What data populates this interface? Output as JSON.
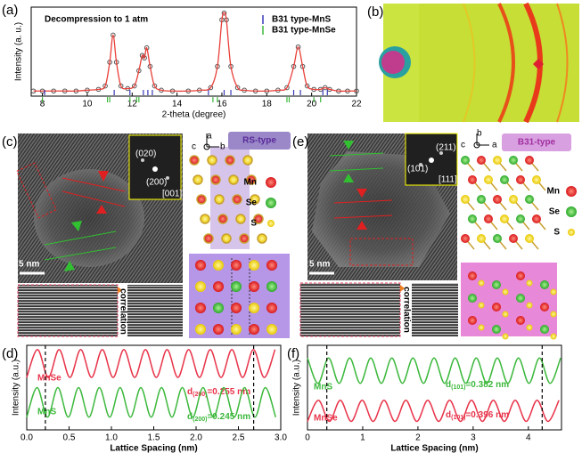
{
  "chart_data": [
    {
      "type": "xrd",
      "panel_label": "(a)",
      "title": "Decompression to 1 atm",
      "xlabel": "2-theta (degree)",
      "ylabel": "Intensity (a. u.)",
      "xlim": [
        7.5,
        22
      ],
      "xticks": [
        8,
        10,
        12,
        14,
        16,
        18,
        20,
        22
      ],
      "ylim": [
        0,
        1.05
      ],
      "legend": "upper right",
      "x": [
        7.6,
        8,
        8.5,
        9,
        9.5,
        10,
        10.5,
        10.8,
        11.0,
        11.15,
        11.3,
        11.5,
        11.8,
        12.1,
        12.3,
        12.45,
        12.55,
        12.65,
        12.8,
        13.0,
        13.3,
        13.8,
        14.5,
        15.0,
        15.5,
        15.8,
        16.0,
        16.1,
        16.2,
        16.4,
        16.7,
        17.0,
        17.5,
        18.0,
        18.5,
        18.9,
        19.2,
        19.4,
        19.6,
        19.8,
        20.1,
        20.4,
        20.6,
        20.8,
        21.2,
        21.6,
        22
      ],
      "series": [
        {
          "color": "#e8403a",
          "marker_color": "#555555",
          "values": [
            0.06,
            0.06,
            0.06,
            0.06,
            0.06,
            0.07,
            0.08,
            0.12,
            0.4,
            0.72,
            0.4,
            0.12,
            0.09,
            0.12,
            0.3,
            0.48,
            0.45,
            0.57,
            0.35,
            0.12,
            0.07,
            0.06,
            0.06,
            0.07,
            0.1,
            0.35,
            0.9,
            0.98,
            0.9,
            0.35,
            0.1,
            0.07,
            0.06,
            0.06,
            0.07,
            0.1,
            0.35,
            0.58,
            0.35,
            0.12,
            0.08,
            0.08,
            0.1,
            0.08,
            0.06,
            0.06,
            0.06
          ]
        }
      ],
      "tick_sets": [
        {
          "name": "B31 type-MnS",
          "color": "#3a3ab8",
          "positions": [
            8.1,
            11.2,
            11.9,
            12.5,
            12.7,
            12.9,
            15.4,
            16.1,
            16.4,
            19.2,
            19.5,
            20.5,
            20.7
          ]
        },
        {
          "name": "B31 type-MnSe",
          "color": "#3cb83c",
          "positions": [
            8.0,
            10.9,
            11.0,
            11.9,
            12.2,
            12.3,
            15.6,
            15.8,
            18.9,
            19.0,
            20.1,
            20.4
          ]
        }
      ]
    },
    {
      "type": "wave",
      "panel_label": "(d)",
      "xlabel": "Lattice Spacing (nm)",
      "ylabel": "Intensity (a.u.)",
      "xlim": [
        0,
        3.0
      ],
      "xticks": [
        {
          "value": 0,
          "label": "0.0"
        },
        0.5,
        {
          "value": 1,
          "label": "1.0"
        },
        1.5,
        {
          "value": 2,
          "label": "2.0"
        },
        2.5,
        {
          "value": 3,
          "label": "3.0"
        }
      ],
      "ylim": [
        0,
        1
      ],
      "vlines": [
        0.22,
        2.68
      ],
      "series": [
        {
          "name": "MnSe",
          "color": "#e8344a",
          "label": {
            "d": "d",
            "sub": "(200)",
            "tail": "=0.255 nm"
          },
          "x": [
            0,
            0.1275,
            0.255,
            0.3825,
            0.51,
            0.6375,
            0.765,
            0.8925,
            1.02,
            1.1475,
            1.275,
            1.4025,
            1.53,
            1.6575,
            1.785,
            1.9125,
            2.04,
            2.1675,
            2.295,
            2.4225,
            2.55,
            2.6775,
            2.805,
            2.9325
          ],
          "values": [
            0.62,
            0.95,
            0.62,
            0.95,
            0.62,
            0.95,
            0.62,
            0.95,
            0.62,
            0.95,
            0.62,
            0.95,
            0.62,
            0.95,
            0.62,
            0.95,
            0.62,
            0.95,
            0.62,
            0.95,
            0.62,
            0.95,
            0.62,
            0.95
          ]
        },
        {
          "name": "MnS",
          "color": "#3cb83c",
          "label": {
            "d": "d",
            "sub": "(200)",
            "tail": "=0.245 nm"
          },
          "x": [
            0,
            0.1225,
            0.245,
            0.3675,
            0.49,
            0.6125,
            0.735,
            0.8575,
            0.98,
            1.1025,
            1.225,
            1.3475,
            1.47,
            1.5925,
            1.715,
            1.8375,
            1.96,
            2.0825,
            2.205,
            2.3275,
            2.45,
            2.5725,
            2.695,
            2.8175,
            2.94
          ],
          "values": [
            0.15,
            0.5,
            0.15,
            0.5,
            0.15,
            0.5,
            0.15,
            0.5,
            0.15,
            0.5,
            0.15,
            0.5,
            0.15,
            0.5,
            0.15,
            0.5,
            0.15,
            0.5,
            0.15,
            0.5,
            0.15,
            0.5,
            0.15,
            0.5,
            0.15
          ]
        }
      ]
    },
    {
      "type": "wave",
      "panel_label": "(f)",
      "xlabel": "Lattice Spacing (nm)",
      "ylabel": "Intensity (a.u.)",
      "xlim": [
        0,
        4.6
      ],
      "xticks": [
        0,
        1,
        2,
        3,
        4
      ],
      "ylim": [
        0,
        1
      ],
      "vlines": [
        0.35,
        4.25
      ],
      "series": [
        {
          "name": "MnS",
          "color": "#3cb83c",
          "label": {
            "d": "d",
            "sub": "(101)",
            "tail": "=0.382 nm"
          },
          "x": [
            0,
            0.191,
            0.382,
            0.573,
            0.764,
            0.955,
            1.146,
            1.337,
            1.528,
            1.719,
            1.91,
            2.101,
            2.292,
            2.483,
            2.674,
            2.865,
            3.056,
            3.247,
            3.438,
            3.629,
            3.82,
            4.011,
            4.202,
            4.393,
            4.584
          ],
          "values": [
            0.85,
            0.55,
            0.85,
            0.55,
            0.85,
            0.55,
            0.85,
            0.55,
            0.85,
            0.55,
            0.85,
            0.55,
            0.85,
            0.55,
            0.85,
            0.55,
            0.85,
            0.55,
            0.85,
            0.55,
            0.85,
            0.55,
            0.85,
            0.55,
            0.85
          ]
        },
        {
          "name": "MnSe",
          "color": "#e8344a",
          "label": {
            "d": "d",
            "sub": "(101)",
            "tail": "=0.396 nm"
          },
          "x": [
            0,
            0.198,
            0.396,
            0.594,
            0.792,
            0.99,
            1.188,
            1.386,
            1.584,
            1.782,
            1.98,
            2.178,
            2.376,
            2.574,
            2.772,
            2.97,
            3.168,
            3.366,
            3.564,
            3.762,
            3.96,
            4.158,
            4.356,
            4.554
          ],
          "values": [
            0.1,
            0.35,
            0.1,
            0.35,
            0.1,
            0.35,
            0.1,
            0.35,
            0.1,
            0.35,
            0.1,
            0.35,
            0.1,
            0.35,
            0.1,
            0.35,
            0.1,
            0.35,
            0.1,
            0.35,
            0.1,
            0.35,
            0.1,
            0.35
          ]
        }
      ]
    }
  ],
  "panels": {
    "b": {
      "label": "(b)"
    },
    "c": {
      "label": "(c)",
      "scale": "5 nm",
      "spots": [
        "(020)",
        "(200)"
      ],
      "zone": "[001]",
      "structure": "RS-type",
      "axes": [
        "a",
        "c",
        "b"
      ],
      "elements": [
        "Mn",
        "Se",
        "S"
      ],
      "correlation": "correlation"
    },
    "e": {
      "label": "(e)",
      "scale": "5 nm",
      "spots": [
        "(101)",
        "(211)"
      ],
      "zone": "[111]",
      "structure": "B31-type",
      "axes": [
        "b",
        "c",
        "a"
      ],
      "elements": [
        "Mn",
        "Se",
        "S"
      ],
      "correlation": "correlation"
    }
  }
}
